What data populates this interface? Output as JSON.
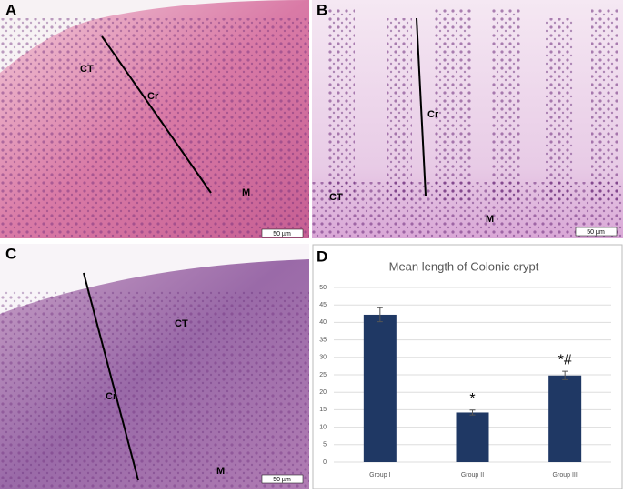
{
  "panels": [
    {
      "label": "A",
      "annotations": [
        "CT",
        "Cr",
        "M"
      ],
      "scale_bar": "50 µm"
    },
    {
      "label": "B",
      "annotations": [
        "Cr",
        "CT",
        "M"
      ],
      "scale_bar": "50 µm"
    },
    {
      "label": "C",
      "annotations": [
        "CT",
        "Cr",
        "M"
      ],
      "scale_bar": "50 µm"
    },
    {
      "label": "D"
    }
  ],
  "chart_data": {
    "type": "bar",
    "title": "Mean length of Colonic crypt",
    "categories": [
      "Group I",
      "Group II",
      "Group III"
    ],
    "series": [
      {
        "color": "#1f3864",
        "values": [
          42.2,
          14.2,
          24.8
        ],
        "errors": [
          2.0,
          0.7,
          1.2
        ]
      }
    ],
    "annotations": [
      "*",
      "*#"
    ],
    "ylim": [
      0,
      50
    ],
    "yticks": [
      0,
      5,
      10,
      15,
      20,
      25,
      30,
      35,
      40,
      45,
      50
    ],
    "grid": true
  }
}
